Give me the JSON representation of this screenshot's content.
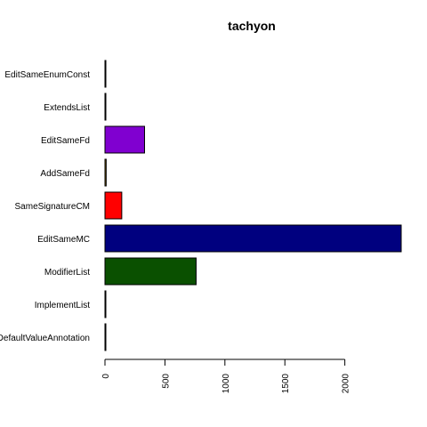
{
  "chart_data": {
    "type": "bar",
    "orientation": "horizontal",
    "title": "tachyon",
    "xlabel": "",
    "ylabel": "",
    "categories": [
      "EditSameEnumConst",
      "ExtendsList",
      "EditSameFd",
      "AddSameFd",
      "SameSignatureCM",
      "EditSameMC",
      "ModifierList",
      "ImplementList",
      "DefaultValueAnnotation"
    ],
    "values": [
      2,
      1,
      330,
      10,
      140,
      2470,
      760,
      1,
      1
    ],
    "colors": [
      "#000000",
      "#000000",
      "#8000d0",
      "#8b6508",
      "#ff0000",
      "#00007f",
      "#0a5000",
      "#000000",
      "#000000"
    ],
    "xlim": [
      0,
      2470
    ],
    "xticks": [
      0,
      500,
      1000,
      1500,
      2000
    ],
    "xtick_labels": [
      "0",
      "500",
      "1000",
      "1500",
      "2000"
    ],
    "grid": false,
    "legend": "none"
  }
}
